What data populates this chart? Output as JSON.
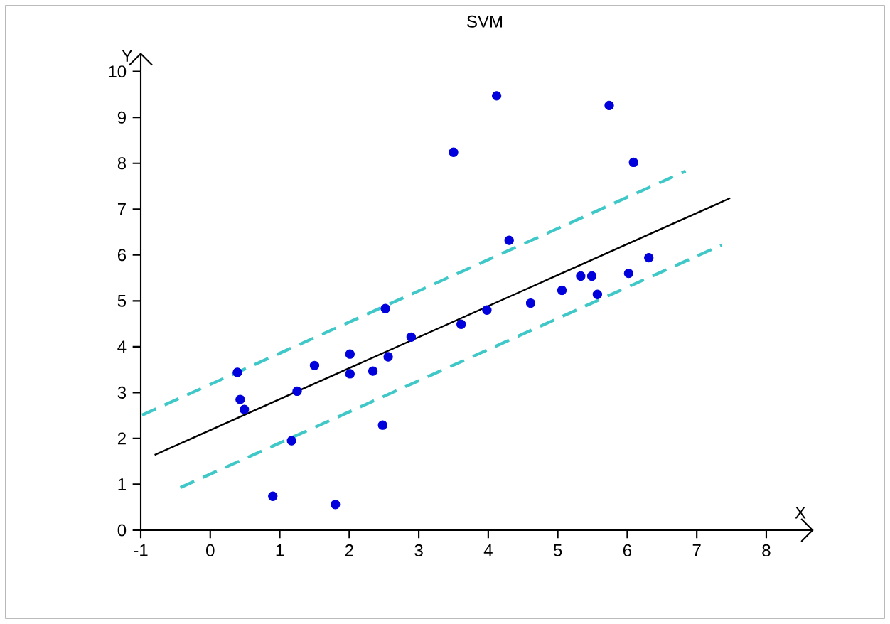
{
  "chart_data": {
    "type": "scatter",
    "title": "SVM",
    "xlabel": "X",
    "ylabel": "Y",
    "xlim": [
      -1,
      8
    ],
    "ylim": [
      0,
      10
    ],
    "xticks": [
      -1,
      0,
      1,
      2,
      3,
      4,
      5,
      6,
      7,
      8
    ],
    "yticks": [
      0,
      1,
      2,
      3,
      4,
      5,
      6,
      7,
      8,
      9,
      10
    ],
    "grid": false,
    "series": [
      {
        "type": "scatter",
        "marker": "circle",
        "color": "#0000dd",
        "x": [
          0.39,
          0.43,
          0.49,
          1.17,
          0.9,
          1.25,
          1.5,
          1.8,
          2.01,
          2.01,
          2.34,
          2.48,
          2.52,
          2.56,
          2.89,
          3.5,
          3.61,
          3.98,
          4.12,
          4.3,
          4.61,
          5.06,
          5.33,
          5.49,
          5.57,
          5.74,
          6.02,
          6.09,
          6.31
        ],
        "values": [
          3.44,
          2.85,
          2.63,
          1.95,
          0.74,
          3.03,
          3.59,
          0.56,
          3.84,
          3.41,
          3.47,
          2.29,
          4.83,
          3.78,
          4.21,
          8.24,
          4.49,
          4.8,
          9.47,
          6.32,
          4.95,
          5.23,
          5.54,
          5.54,
          5.14,
          9.26,
          5.6,
          8.02,
          5.94
        ]
      },
      {
        "type": "line",
        "marker": "none",
        "line_style": "solid",
        "color": "#000000",
        "x": [
          -0.8,
          7.48
        ],
        "values": [
          1.64,
          7.24
        ]
      },
      {
        "type": "line",
        "marker": "none",
        "line_style": "dashed",
        "color": "#40c8c8",
        "x": [
          -0.98,
          6.84
        ],
        "values": [
          2.51,
          7.83
        ]
      },
      {
        "type": "line",
        "marker": "none",
        "line_style": "dashed",
        "color": "#40c8c8",
        "x": [
          -0.43,
          7.36
        ],
        "values": [
          0.93,
          6.22
        ]
      }
    ]
  }
}
